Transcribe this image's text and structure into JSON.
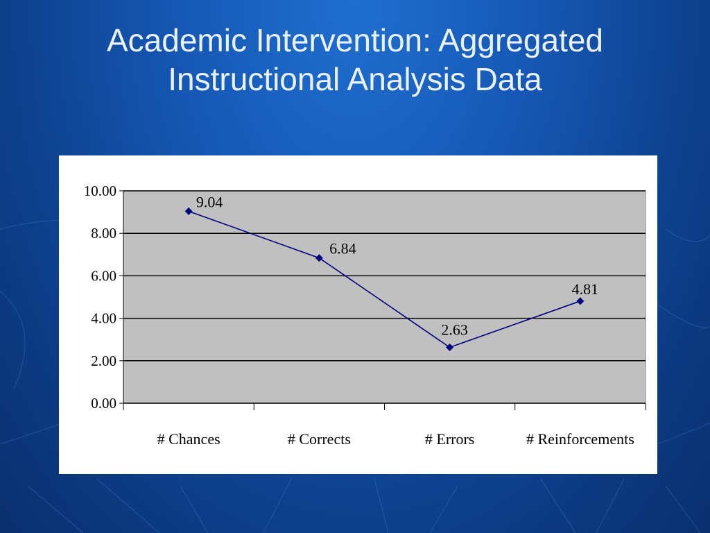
{
  "slide": {
    "title_line1": "Academic Intervention: Aggregated",
    "title_line2": "Instructional Analysis Data"
  },
  "colors": {
    "background": "#1658b5",
    "plot_area": "#c0c0c0",
    "series_line": "#000080"
  },
  "chart_data": {
    "type": "line",
    "categories": [
      "# Chances",
      "# Corrects",
      "# Errors",
      "# Reinforcements"
    ],
    "series": [
      {
        "values": [
          9.04,
          6.84,
          2.63,
          4.81
        ]
      }
    ],
    "data_labels": [
      "9.04",
      "6.84",
      "2.63",
      "4.81"
    ],
    "y_ticks": [
      "0.00",
      "2.00",
      "4.00",
      "6.00",
      "8.00",
      "10.00"
    ],
    "ylim": [
      0,
      10
    ],
    "grid": true,
    "legend": "none",
    "marker": "diamond"
  }
}
